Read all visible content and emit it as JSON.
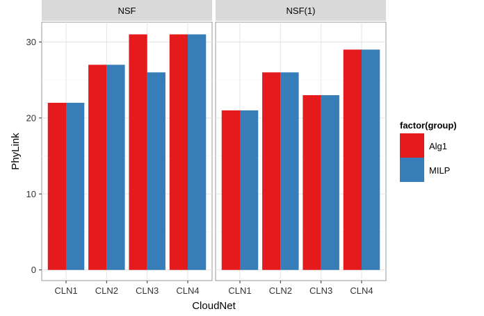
{
  "chart_data": {
    "type": "bar",
    "xlabel": "CloudNet",
    "ylabel": "PhyLink",
    "ylim": [
      -1.4,
      32.6
    ],
    "yticks": [
      0,
      10,
      20,
      30
    ],
    "grid": true,
    "legend_position": "right",
    "legend_title": "factor(group)",
    "categories": [
      "CLN1",
      "CLN2",
      "CLN3",
      "CLN4"
    ],
    "panels": [
      {
        "title": "NSF",
        "series": [
          {
            "name": "Alg1",
            "color": "#e41a1c",
            "values": [
              22,
              27,
              31,
              31
            ]
          },
          {
            "name": "MILP",
            "color": "#377eb8",
            "values": [
              22,
              27,
              26,
              31
            ]
          }
        ]
      },
      {
        "title": "NSF(1)",
        "series": [
          {
            "name": "Alg1",
            "color": "#e41a1c",
            "values": [
              21,
              26,
              23,
              29
            ]
          },
          {
            "name": "MILP",
            "color": "#377eb8",
            "values": [
              21,
              26,
              23,
              29
            ]
          }
        ]
      }
    ]
  }
}
